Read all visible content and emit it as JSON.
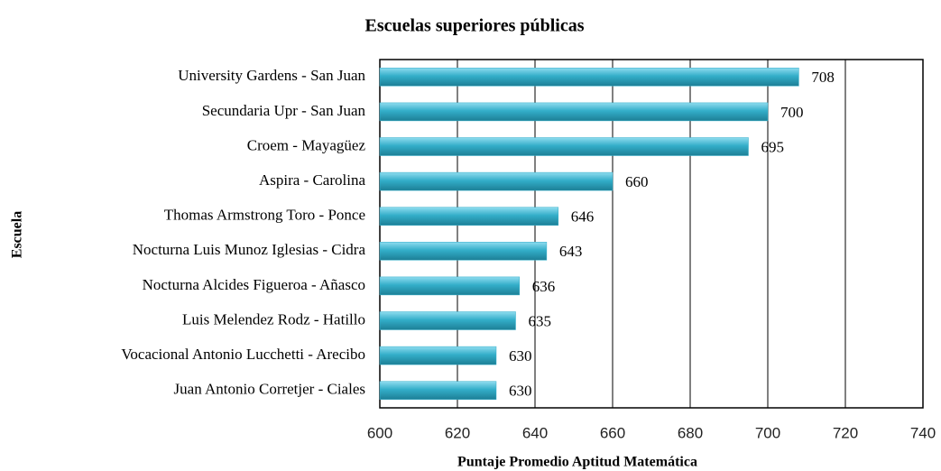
{
  "chart_data": {
    "type": "bar",
    "orientation": "horizontal",
    "title": "Escuelas superiores públicas",
    "x_label": "Puntaje Promedio Aptitud Matemática",
    "y_label": "Escuela",
    "categories": [
      "University Gardens - San Juan",
      "Secundaria Upr - San Juan",
      "Croem - Mayagüez",
      "Aspira - Carolina",
      "Thomas Armstrong Toro - Ponce",
      "Nocturna Luis Munoz Iglesias - Cidra",
      "Nocturna Alcides Figueroa - Añasco",
      "Luis Melendez Rodz - Hatillo",
      "Vocacional Antonio Lucchetti - Arecibo",
      "Juan Antonio Corretjer - Ciales"
    ],
    "values": [
      708,
      700,
      695,
      660,
      646,
      643,
      636,
      635,
      630,
      630
    ],
    "color": "#33aec9",
    "xlim": [
      600,
      740
    ],
    "xticks": [
      600,
      620,
      640,
      660,
      680,
      700,
      720,
      740
    ],
    "grid": true
  }
}
